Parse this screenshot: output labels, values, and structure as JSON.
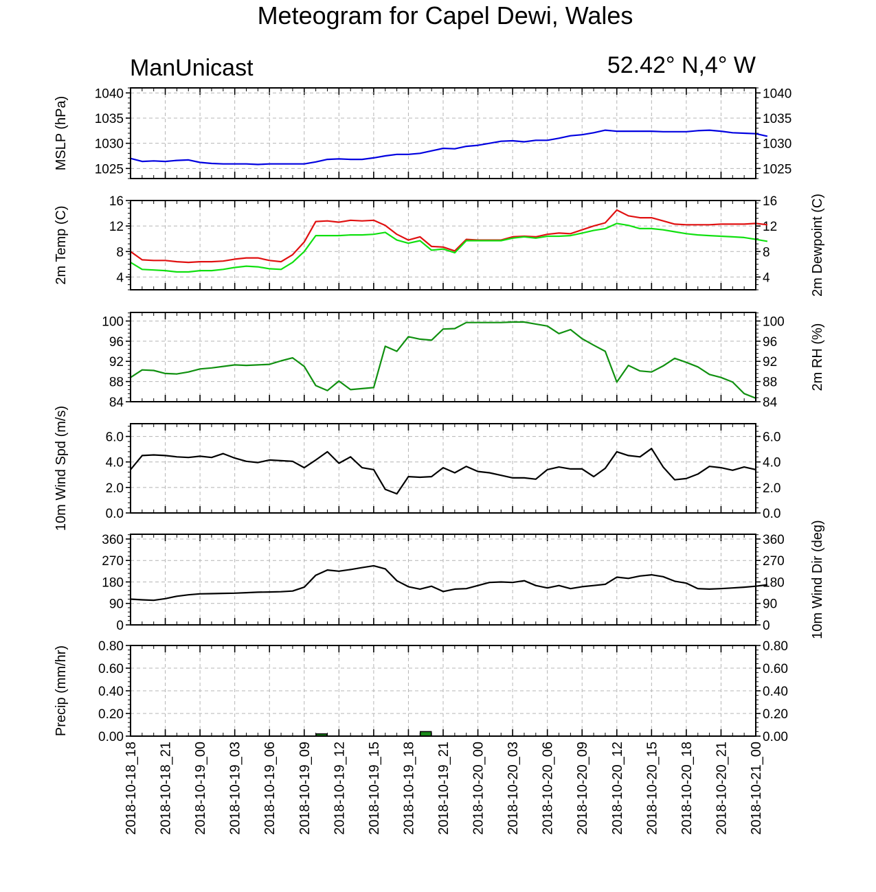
{
  "header": {
    "title": "Meteogram for Capel Dewi, Wales",
    "model": "ManUnicast",
    "location": "52.42° N,4° W"
  },
  "colors": {
    "mslp": "#0000e0",
    "temp": "#e01010",
    "dewpoint": "#10e010",
    "rh": "#109010",
    "wind": "#000000",
    "precip_bar": "#1a8a1a",
    "grid": "#b4b4b4"
  },
  "chart_data": {
    "type": "line",
    "x_ticks": [
      "2018-10-18_18",
      "2018-10-18_21",
      "2018-10-19_00",
      "2018-10-19_03",
      "2018-10-19_06",
      "2018-10-19_09",
      "2018-10-19_12",
      "2018-10-19_15",
      "2018-10-19_18",
      "2018-10-19_21",
      "2018-10-20_00",
      "2018-10-20_03",
      "2018-10-20_06",
      "2018-10-20_09",
      "2018-10-20_12",
      "2018-10-20_15",
      "2018-10-20_18",
      "2018-10-20_21",
      "2018-10-21_00"
    ],
    "x_unit": "hourly steps from 2018-10-18_18 to 2018-10-21_00",
    "panels": [
      {
        "ylabel_left": "MSLP (hPa)",
        "ylabel_right": "",
        "ylim": [
          1023,
          1041
        ],
        "yticks": [
          1025,
          1030,
          1035,
          1040
        ],
        "ytick_labels": [
          "1025",
          "1030",
          "1035",
          "1040"
        ],
        "series": [
          {
            "name": "MSLP",
            "color": "mslp",
            "values": [
              1027,
              1026.4,
              1026.5,
              1026.4,
              1026.6,
              1026.7,
              1026.2,
              1026.0,
              1025.9,
              1025.9,
              1025.9,
              1025.8,
              1025.9,
              1025.9,
              1025.9,
              1025.9,
              1026.3,
              1026.8,
              1026.9,
              1026.8,
              1026.8,
              1027.1,
              1027.5,
              1027.8,
              1027.8,
              1028.0,
              1028.5,
              1029.0,
              1028.9,
              1029.4,
              1029.6,
              1030.0,
              1030.4,
              1030.5,
              1030.3,
              1030.6,
              1030.6,
              1031.0,
              1031.5,
              1031.7,
              1032.1,
              1032.6,
              1032.4,
              1032.4,
              1032.4,
              1032.4,
              1032.3,
              1032.3,
              1032.3,
              1032.5,
              1032.6,
              1032.4,
              1032.1,
              1032.0,
              1031.9,
              1031.4
            ]
          }
        ]
      },
      {
        "ylabel_left": "2m Temp (C)",
        "ylabel_right": "2m Dewpoint (C)",
        "ylim": [
          2,
          16
        ],
        "yticks": [
          4,
          8,
          12,
          16
        ],
        "ytick_labels": [
          "4",
          "8",
          "12",
          "16"
        ],
        "series": [
          {
            "name": "2m Temp",
            "color": "temp",
            "values": [
              8.0,
              6.7,
              6.6,
              6.6,
              6.4,
              6.3,
              6.4,
              6.4,
              6.5,
              6.8,
              7.0,
              7.0,
              6.6,
              6.4,
              7.5,
              9.5,
              12.7,
              12.8,
              12.6,
              12.9,
              12.8,
              12.9,
              12.1,
              10.7,
              9.8,
              10.3,
              8.8,
              8.7,
              8.1,
              9.9,
              9.8,
              9.8,
              9.8,
              10.3,
              10.4,
              10.3,
              10.7,
              10.9,
              10.8,
              11.4,
              12.0,
              12.5,
              14.5,
              13.6,
              13.3,
              13.3,
              12.8,
              12.3,
              12.2,
              12.2,
              12.2,
              12.3,
              12.3,
              12.3,
              12.4,
              12.2
            ]
          },
          {
            "name": "2m Dewpoint",
            "color": "dewpoint",
            "values": [
              6.3,
              5.2,
              5.1,
              5.0,
              4.8,
              4.8,
              5.0,
              5.0,
              5.2,
              5.5,
              5.7,
              5.6,
              5.3,
              5.2,
              6.3,
              8.0,
              10.5,
              10.5,
              10.5,
              10.6,
              10.6,
              10.7,
              11.0,
              9.8,
              9.3,
              9.7,
              8.2,
              8.4,
              7.8,
              9.7,
              9.7,
              9.7,
              9.7,
              10.1,
              10.3,
              10.1,
              10.4,
              10.4,
              10.5,
              10.9,
              11.3,
              11.6,
              12.4,
              12.1,
              11.6,
              11.6,
              11.4,
              11.1,
              10.8,
              10.6,
              10.5,
              10.4,
              10.3,
              10.2,
              9.9,
              9.6
            ]
          }
        ]
      },
      {
        "ylabel_left": "",
        "ylabel_right": "2m RH (%)",
        "ylim": [
          84,
          101.7
        ],
        "yticks": [
          84,
          88,
          92,
          96,
          100
        ],
        "ytick_labels": [
          "84",
          "88",
          "92",
          "96",
          "100"
        ],
        "series": [
          {
            "name": "2m RH",
            "color": "rh",
            "values": [
              88.8,
              90.3,
              90.2,
              89.6,
              89.5,
              89.9,
              90.5,
              90.7,
              91.0,
              91.3,
              91.2,
              91.3,
              91.4,
              92.1,
              92.7,
              91.0,
              87.2,
              86.2,
              88.1,
              86.4,
              86.6,
              86.8,
              95.0,
              94.0,
              96.9,
              96.4,
              96.2,
              98.4,
              98.5,
              99.7,
              99.7,
              99.7,
              99.7,
              99.8,
              99.8,
              99.4,
              99.0,
              97.5,
              98.3,
              96.5,
              95.2,
              94.0,
              87.9,
              91.2,
              90.1,
              89.9,
              91.1,
              92.6,
              91.8,
              90.9,
              89.4,
              88.8,
              87.9,
              85.6,
              84.7
            ]
          }
        ]
      },
      {
        "ylabel_left": "10m Wind Spd (m/s)",
        "ylabel_right": "",
        "ylim": [
          0,
          7
        ],
        "yticks": [
          0,
          2,
          4,
          6
        ],
        "ytick_labels": [
          "0.0",
          "2.0",
          "4.0",
          "6.0"
        ],
        "series": [
          {
            "name": "10m Wind Spd",
            "color": "wind",
            "values": [
              3.4,
              4.5,
              4.55,
              4.5,
              4.4,
              4.35,
              4.45,
              4.35,
              4.65,
              4.3,
              4.05,
              3.95,
              4.15,
              4.1,
              4.05,
              3.55,
              4.15,
              4.8,
              3.9,
              4.4,
              3.55,
              3.4,
              1.85,
              1.5,
              2.85,
              2.8,
              2.85,
              3.55,
              3.15,
              3.65,
              3.25,
              3.15,
              2.95,
              2.75,
              2.75,
              2.65,
              3.4,
              3.6,
              3.45,
              3.45,
              2.85,
              3.5,
              4.8,
              4.5,
              4.4,
              5.05,
              3.6,
              2.6,
              2.7,
              3.05,
              3.65,
              3.55,
              3.35,
              3.6,
              3.4
            ]
          }
        ]
      },
      {
        "ylabel_left": "",
        "ylabel_right": "10m Wind Dir (deg)",
        "ylim": [
          0,
          380
        ],
        "yticks": [
          0,
          90,
          180,
          270,
          360
        ],
        "ytick_labels": [
          "0",
          "90",
          "180",
          "270",
          "360"
        ],
        "series": [
          {
            "name": "10m Wind Dir",
            "color": "wind",
            "values": [
              108,
              105,
              103,
              110,
              120,
              126,
              130,
              131,
              132,
              133,
              135,
              137,
              138,
              139,
              142,
              158,
              208,
              230,
              225,
              232,
              240,
              248,
              235,
              185,
              160,
              150,
              162,
              140,
              150,
              152,
              165,
              178,
              180,
              178,
              185,
              165,
              155,
              165,
              152,
              160,
              165,
              170,
              200,
              195,
              205,
              210,
              202,
              183,
              175,
              152,
              150,
              152,
              155,
              158,
              162,
              168
            ]
          }
        ]
      },
      {
        "ylabel_left": "Precip (mm/hr)",
        "ylabel_right": "",
        "ylim": [
          0,
          0.8
        ],
        "yticks": [
          0,
          0.2,
          0.4,
          0.6,
          0.8
        ],
        "ytick_labels": [
          "0.00",
          "0.20",
          "0.40",
          "0.60",
          "0.80"
        ],
        "bars": [
          {
            "name": "Precip",
            "color": "precip_bar",
            "x_index": 16.5,
            "value": 0.02
          },
          {
            "name": "Precip",
            "color": "precip_bar",
            "x_index": 25.5,
            "value": 0.04
          }
        ]
      }
    ]
  }
}
